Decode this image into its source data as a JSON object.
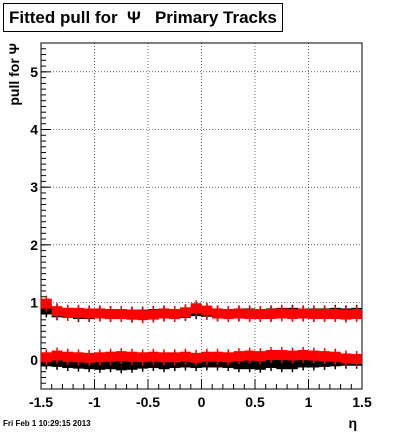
{
  "title": "Fitted pull for  Ψ   Primary Tracks",
  "timestamp": "Fri Feb  1 10:29:15 2013",
  "chart_data": {
    "type": "scatter",
    "xlabel": "η",
    "ylabel": "pull for Ψ",
    "xlim": [
      -1.5,
      1.5
    ],
    "ylim": [
      -0.5,
      5.5
    ],
    "xticks": [
      -1.5,
      -1,
      -0.5,
      0,
      0.5,
      1,
      1.5
    ],
    "xtick_labels": [
      "-1.5",
      "-1",
      "-0.5",
      "0",
      "0.5",
      "1",
      "1.5"
    ],
    "yticks": [
      0,
      1,
      2,
      3,
      4,
      5
    ],
    "ytick_labels": [
      "0",
      "1",
      "2",
      "3",
      "4",
      "5"
    ],
    "grid": true,
    "colors": {
      "red": "#ff0000",
      "black": "#000000"
    },
    "series": [
      {
        "color": "#000000",
        "x": [
          -1.45,
          -1.35,
          -1.25,
          -1.15,
          -1.05,
          -0.95,
          -0.85,
          -0.75,
          -0.65,
          -0.55,
          -0.45,
          -0.35,
          -0.25,
          -0.15,
          -0.05,
          0.05,
          0.15,
          0.25,
          0.35,
          0.45,
          0.55,
          0.65,
          0.75,
          0.85,
          0.95,
          1.05,
          1.15,
          1.25,
          1.35,
          1.45
        ],
        "y": [
          0.88,
          0.83,
          0.82,
          0.8,
          0.8,
          0.81,
          0.8,
          0.8,
          0.79,
          0.79,
          0.8,
          0.81,
          0.8,
          0.82,
          0.85,
          0.84,
          0.81,
          0.8,
          0.81,
          0.81,
          0.8,
          0.81,
          0.82,
          0.82,
          0.81,
          0.81,
          0.81,
          0.82,
          0.81,
          0.82
        ]
      },
      {
        "color": "#ff0000",
        "x": [
          -1.45,
          -1.35,
          -1.25,
          -1.15,
          -1.05,
          -0.95,
          -0.85,
          -0.75,
          -0.65,
          -0.55,
          -0.45,
          -0.35,
          -0.25,
          -0.15,
          -0.05,
          0.05,
          0.15,
          0.25,
          0.35,
          0.45,
          0.55,
          0.65,
          0.75,
          0.85,
          0.95,
          1.05,
          1.15,
          1.25,
          1.35,
          1.45
        ],
        "y": [
          0.98,
          0.85,
          0.82,
          0.82,
          0.81,
          0.81,
          0.8,
          0.8,
          0.79,
          0.78,
          0.79,
          0.81,
          0.8,
          0.83,
          0.9,
          0.86,
          0.81,
          0.8,
          0.81,
          0.8,
          0.8,
          0.8,
          0.81,
          0.8,
          0.81,
          0.8,
          0.8,
          0.8,
          0.79,
          0.8
        ]
      },
      {
        "color": "#000000",
        "x": [
          -1.45,
          -1.35,
          -1.25,
          -1.15,
          -1.05,
          -0.95,
          -0.85,
          -0.75,
          -0.65,
          -0.55,
          -0.45,
          -0.35,
          -0.25,
          -0.15,
          -0.05,
          0.05,
          0.15,
          0.25,
          0.35,
          0.45,
          0.55,
          0.65,
          0.75,
          0.85,
          0.95,
          1.05,
          1.15,
          1.25,
          1.35,
          1.45
        ],
        "y": [
          -0.02,
          -0.03,
          -0.05,
          -0.06,
          -0.07,
          -0.08,
          -0.07,
          -0.09,
          -0.08,
          -0.06,
          -0.05,
          -0.07,
          -0.05,
          -0.04,
          -0.05,
          -0.04,
          -0.04,
          -0.05,
          -0.07,
          -0.07,
          -0.08,
          -0.05,
          -0.07,
          -0.07,
          -0.04,
          -0.04,
          -0.03,
          -0.02,
          -0.01,
          -0.01
        ]
      },
      {
        "color": "#ff0000",
        "x": [
          -1.45,
          -1.35,
          -1.25,
          -1.15,
          -1.05,
          -0.95,
          -0.85,
          -0.75,
          -0.65,
          -0.55,
          -0.45,
          -0.35,
          -0.25,
          -0.15,
          -0.05,
          0.05,
          0.15,
          0.25,
          0.35,
          0.45,
          0.55,
          0.65,
          0.75,
          0.85,
          0.95,
          1.05,
          1.15,
          1.25,
          1.35,
          1.45
        ],
        "y": [
          0.05,
          0.08,
          0.06,
          0.05,
          0.04,
          0.05,
          0.06,
          0.07,
          0.06,
          0.05,
          0.06,
          0.05,
          0.05,
          0.06,
          0.04,
          0.06,
          0.06,
          0.05,
          0.07,
          0.08,
          0.07,
          0.09,
          0.09,
          0.08,
          0.09,
          0.08,
          0.07,
          0.06,
          0.03,
          0.02
        ]
      }
    ]
  }
}
